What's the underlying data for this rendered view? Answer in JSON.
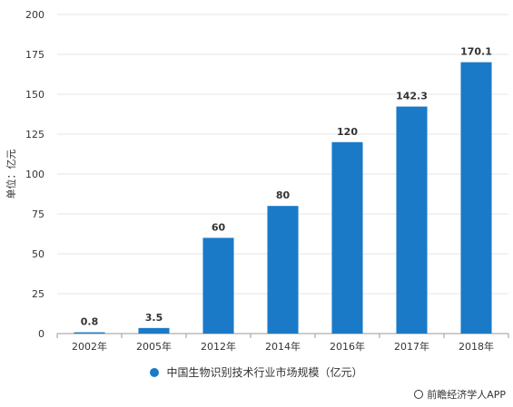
{
  "chart_data": {
    "type": "bar",
    "categories": [
      "2002年",
      "2005年",
      "2012年",
      "2014年",
      "2016年",
      "2017年",
      "2018年"
    ],
    "series": [
      {
        "name": "中国生物识别技术行业市场规模（亿元）",
        "values": [
          0.8,
          3.5,
          60,
          80,
          120,
          142.3,
          170.1
        ]
      }
    ],
    "data_labels": [
      "0.8",
      "3.5",
      "60",
      "80",
      "120",
      "142.3",
      "170.1"
    ],
    "ylabel": "单位：亿元",
    "xlabel": "",
    "ylim": [
      0,
      200
    ],
    "yticks": [
      0,
      25,
      50,
      75,
      100,
      125,
      150,
      175,
      200
    ],
    "grid": "y-major",
    "legend_position": "bottom-center",
    "bar_color": "#1a7ac7"
  },
  "legend": {
    "label": "中国生物识别技术行业市场规模（亿元）"
  },
  "source": {
    "label": "前瞻经济学人APP"
  }
}
